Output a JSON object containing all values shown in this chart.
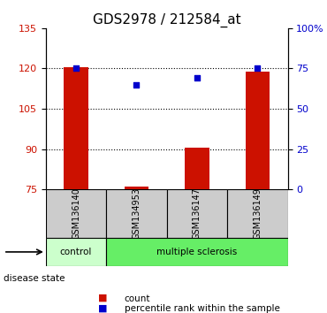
{
  "title": "GDS2978 / 212584_at",
  "samples": [
    "GSM136140",
    "GSM134953",
    "GSM136147",
    "GSM136149"
  ],
  "bar_values": [
    120.5,
    76.2,
    90.5,
    119.0
  ],
  "percentile_values": [
    75.5,
    65.0,
    69.0,
    75.0
  ],
  "ylim_left": [
    75,
    135
  ],
  "ylim_right": [
    0,
    100
  ],
  "yticks_left": [
    75,
    90,
    105,
    120,
    135
  ],
  "yticks_right": [
    0,
    25,
    50,
    75,
    100
  ],
  "yticklabels_right": [
    "0",
    "25",
    "50",
    "75",
    "100%"
  ],
  "bar_color": "#cc1100",
  "dot_color": "#0000cc",
  "gridline_y": [
    90,
    105,
    120
  ],
  "disease_groups": [
    {
      "label": "control",
      "samples": [
        "GSM136140"
      ],
      "color": "#ccffcc"
    },
    {
      "label": "multiple sclerosis",
      "samples": [
        "GSM134953",
        "GSM136147",
        "GSM136149"
      ],
      "color": "#66ee66"
    }
  ],
  "label_color_left": "#cc1100",
  "label_color_right": "#0000cc",
  "disease_state_label": "disease state",
  "legend_count_label": "count",
  "legend_percentile_label": "percentile rank within the sample",
  "sample_box_color": "#cccccc",
  "bar_width": 0.4
}
